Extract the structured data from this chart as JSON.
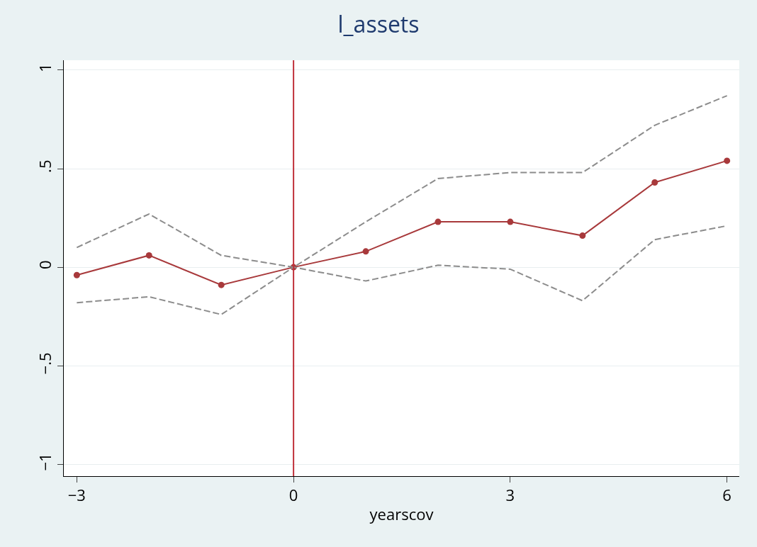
{
  "chart_data": {
    "type": "line",
    "title": "l_assets",
    "xlabel": "yearscov",
    "x": [
      -3,
      -2,
      -1,
      0,
      1,
      2,
      3,
      4,
      5,
      6
    ],
    "series": [
      {
        "color": "#a8393b",
        "marker": "circle",
        "line_style": "solid",
        "values": [
          -0.04,
          0.06,
          -0.09,
          0,
          0.08,
          0.23,
          0.23,
          0.16,
          0.43,
          0.54
        ]
      },
      {
        "color": "#8c8c8c",
        "marker": "none",
        "line_style": "dashed",
        "values": [
          0.1,
          0.27,
          0.06,
          0,
          0.23,
          0.45,
          0.48,
          0.48,
          0.72,
          0.87
        ]
      },
      {
        "color": "#8c8c8c",
        "marker": "none",
        "line_style": "dashed",
        "values": [
          -0.18,
          -0.15,
          -0.24,
          0,
          -0.07,
          0.01,
          -0.01,
          -0.17,
          0.14,
          0.21
        ]
      }
    ],
    "xlim": [
      -3.18,
      6.17
    ],
    "ylim": [
      -1.06,
      1.05
    ],
    "xticks": [
      {
        "value": -3,
        "label": "−3"
      },
      0,
      3,
      6
    ],
    "yticks": [
      {
        "value": -1,
        "label": "−1"
      },
      {
        "value": -0.5,
        "label": "−.5"
      },
      0,
      {
        "value": 0.5,
        "label": ".5"
      },
      1
    ],
    "ref_lines": [
      {
        "axis": "x",
        "value": 0,
        "color": "#c0303a"
      }
    ],
    "grid": "y"
  }
}
